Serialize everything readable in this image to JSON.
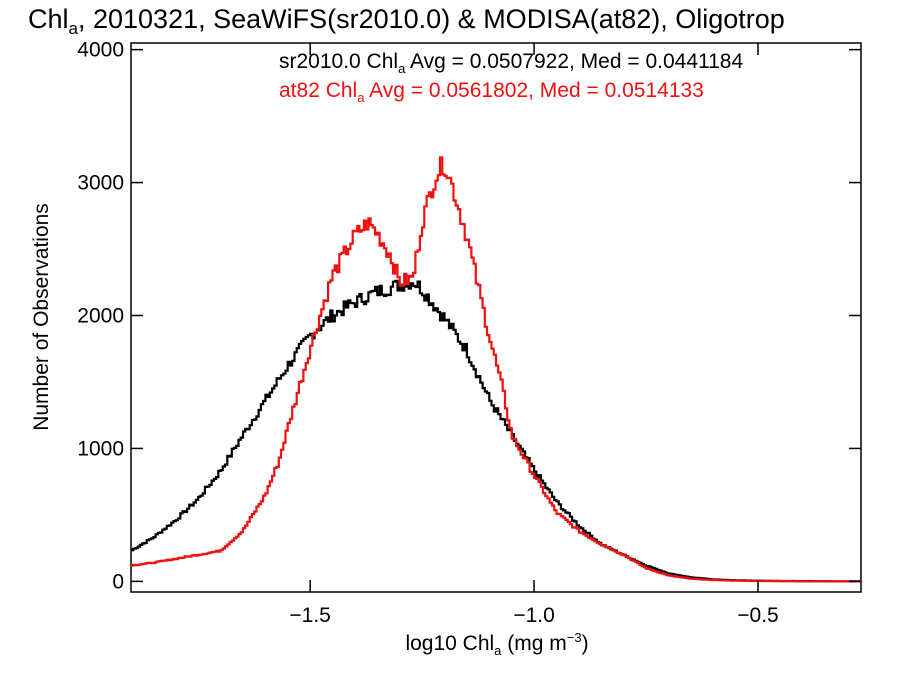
{
  "chart_data": {
    "type": "line",
    "title": {
      "parts": [
        "Chl",
        "a",
        ", 2010321, SeaWiFS(sr2010.0) & MODISA(at82), Oligotrop"
      ]
    },
    "xlabel": {
      "parts": [
        "log10 Chl",
        "a",
        " (mg m",
        "−3",
        ")"
      ]
    },
    "ylabel": "Number of Observations",
    "xlim": [
      -1.9,
      -0.27
    ],
    "ylim": [
      -80,
      4050
    ],
    "xticks": [
      {
        "value": -1.5,
        "label": "−1.5"
      },
      {
        "value": -1.0,
        "label": "−1.0"
      },
      {
        "value": -0.5,
        "label": "−0.5"
      }
    ],
    "yticks": [
      {
        "value": 0,
        "label": "0"
      },
      {
        "value": 1000,
        "label": "1000"
      },
      {
        "value": 2000,
        "label": "2000"
      },
      {
        "value": 3000,
        "label": "3000"
      },
      {
        "value": 4000,
        "label": "4000"
      }
    ],
    "series": [
      {
        "color": "#000000",
        "legend": {
          "parts": [
            "sr2010.0 Chl",
            "a",
            " Avg = 0.0507922, Med = 0.0441184"
          ]
        },
        "x": [
          -1.9,
          -1.85,
          -1.8,
          -1.75,
          -1.7,
          -1.65,
          -1.6,
          -1.55,
          -1.5,
          -1.45,
          -1.4,
          -1.35,
          -1.3,
          -1.27,
          -1.25,
          -1.2,
          -1.15,
          -1.1,
          -1.05,
          -1.0,
          -0.95,
          -0.9,
          -0.85,
          -0.8,
          -0.75,
          -0.7,
          -0.65,
          -0.6,
          -0.55,
          -0.5,
          -0.45,
          -0.4,
          -0.35,
          -0.27
        ],
        "y": [
          230,
          330,
          460,
          620,
          830,
          1100,
          1360,
          1620,
          1850,
          2000,
          2100,
          2180,
          2230,
          2260,
          2200,
          1980,
          1740,
          1370,
          1100,
          840,
          600,
          420,
          280,
          200,
          120,
          60,
          30,
          15,
          8,
          5,
          3,
          2,
          1,
          0
        ]
      },
      {
        "color": "#ee1111",
        "legend": {
          "parts": [
            "at82 Chl",
            "a",
            " Avg = 0.0561802, Med = 0.0514133"
          ]
        },
        "x": [
          -1.9,
          -1.85,
          -1.8,
          -1.75,
          -1.7,
          -1.65,
          -1.6,
          -1.57,
          -1.55,
          -1.5,
          -1.45,
          -1.4,
          -1.37,
          -1.35,
          -1.32,
          -1.3,
          -1.27,
          -1.25,
          -1.22,
          -1.2,
          -1.18,
          -1.15,
          -1.1,
          -1.07,
          -1.05,
          -1.0,
          -0.95,
          -0.9,
          -0.85,
          -0.8,
          -0.75,
          -0.7,
          -0.65,
          -0.6,
          -0.55,
          -0.5,
          -0.45,
          -0.4,
          -0.35,
          -0.27
        ],
        "y": [
          120,
          140,
          170,
          200,
          230,
          380,
          650,
          900,
          1150,
          1750,
          2300,
          2600,
          2700,
          2620,
          2450,
          2250,
          2280,
          2700,
          3050,
          3150,
          2950,
          2600,
          1850,
          1450,
          1100,
          800,
          520,
          380,
          280,
          200,
          100,
          45,
          20,
          10,
          5,
          3,
          2,
          1,
          0,
          0
        ]
      }
    ]
  }
}
